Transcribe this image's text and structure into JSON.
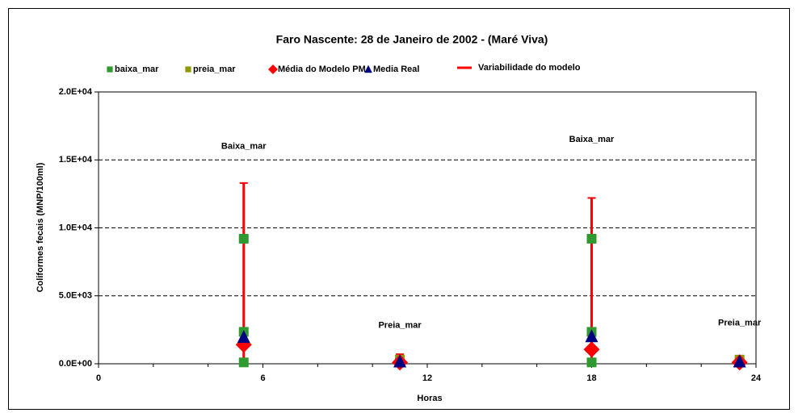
{
  "chart_data": {
    "type": "scatter",
    "title": "Faro Nascente: 28 de Janeiro de 2002 - (Maré Viva)",
    "xlabel": "Horas",
    "ylabel": "Coliformes fecais (MNP/100ml)",
    "xlim": [
      0,
      24
    ],
    "xticks": [
      0,
      6,
      12,
      18,
      24
    ],
    "xminorticks": [
      2,
      4,
      8,
      10,
      14,
      16,
      20,
      22
    ],
    "ylim": [
      0,
      20000
    ],
    "yticks": [
      {
        "value": 0,
        "label": "0.0E+00"
      },
      {
        "value": 5000,
        "label": "5.0E+03"
      },
      {
        "value": 10000,
        "label": "1.0E+04"
      },
      {
        "value": 15000,
        "label": "1.5E+04"
      },
      {
        "value": 20000,
        "label": "2.0E+04"
      }
    ],
    "grid": true,
    "legend": "top",
    "series": [
      {
        "name": "baixa_mar",
        "marker": "square",
        "color": "#2f9a2f",
        "x": [
          5.3,
          5.3,
          5.3,
          18,
          18,
          18
        ],
        "values": [
          9200,
          2350,
          100,
          9200,
          2350,
          100
        ]
      },
      {
        "name": "preia_mar",
        "marker": "square",
        "color": "#8f9a00",
        "x": [
          11,
          11,
          23.4,
          23.4
        ],
        "values": [
          300,
          100,
          300,
          100
        ]
      },
      {
        "name": "Média do Modelo PM",
        "marker": "diamond",
        "color": "#ff0000",
        "x": [
          5.3,
          11,
          18,
          23.4
        ],
        "values": [
          1400,
          100,
          1050,
          100
        ]
      },
      {
        "name": "Media Real",
        "marker": "triangle",
        "color": "#000080",
        "x": [
          5.3,
          11,
          18,
          23.4
        ],
        "values": [
          1950,
          150,
          2000,
          150
        ]
      },
      {
        "name": "Variabilidade do modelo",
        "marker": "range",
        "color": "#ff0000",
        "x": [
          5.3,
          11,
          18,
          23.4
        ],
        "values": [
          13300,
          700,
          12200,
          600
        ],
        "low": [
          0,
          0,
          0,
          0
        ]
      }
    ],
    "annotations": [
      {
        "text": "Baixa_mar",
        "x": 5.3,
        "y": 16000
      },
      {
        "text": "Preia_mar",
        "x": 11,
        "y": 2800
      },
      {
        "text": "Baixa_mar",
        "x": 18,
        "y": 16500
      },
      {
        "text": "Preia_mar",
        "x": 23.4,
        "y": 3000
      }
    ]
  }
}
